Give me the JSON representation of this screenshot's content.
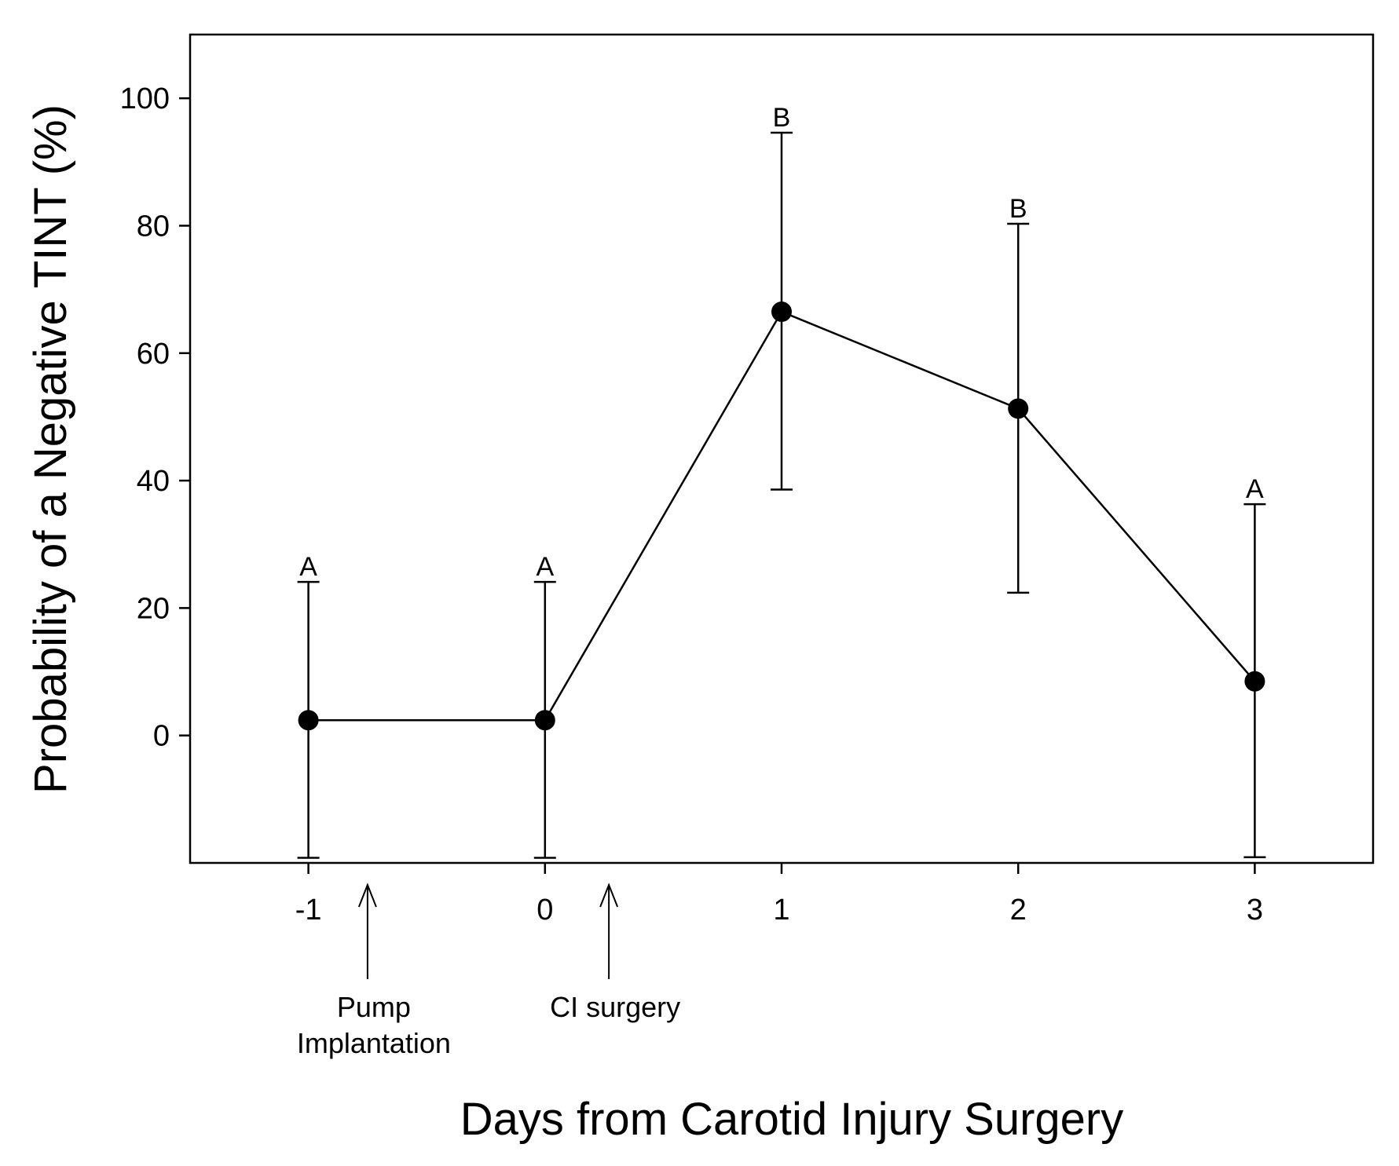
{
  "chart_data": {
    "type": "line",
    "title": "",
    "xlabel": "Days from Carotid Injury Surgery",
    "ylabel": "Probability of a Negative TINT (%)",
    "xlim": [
      -1.5,
      3.5
    ],
    "ylim": [
      -20,
      110
    ],
    "x_ticks": [
      -1,
      0,
      1,
      2,
      3
    ],
    "x_tick_labels": [
      "-1",
      "0",
      "1",
      "2",
      "3"
    ],
    "y_ticks": [
      0,
      20,
      40,
      60,
      80,
      100
    ],
    "y_tick_labels": [
      "0",
      "20",
      "40",
      "60",
      "80",
      "100"
    ],
    "grid": false,
    "series": [
      {
        "x": [
          -1,
          0,
          1,
          2,
          3
        ],
        "values": [
          2.4,
          2.4,
          66.5,
          51.3,
          8.5
        ],
        "error_upper": [
          24.1,
          24.1,
          94.6,
          80.3,
          36.3
        ],
        "error_lower": [
          -19.2,
          -19.2,
          38.6,
          22.4,
          -19.1
        ],
        "significance_letters": [
          "A",
          "A",
          "B",
          "B",
          "A"
        ]
      }
    ],
    "annotations": [
      {
        "label": "Pump Implantation",
        "lines": [
          "Pump",
          "Implantation"
        ],
        "x": -0.75
      },
      {
        "label": "CI surgery",
        "lines": [
          "CI surgery"
        ],
        "x": 0.27
      }
    ],
    "colors": {
      "line": "#000000",
      "marker": "#000000",
      "background": "#ffffff"
    }
  }
}
